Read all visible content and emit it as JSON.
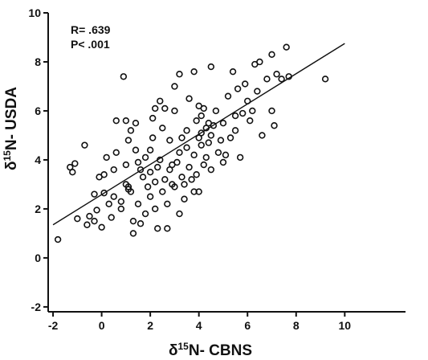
{
  "chart_data": {
    "type": "scatter",
    "title": "",
    "annotations": [
      "R= .639",
      "P< .001"
    ],
    "xlabel": {
      "prefix": "δ",
      "sup": "15",
      "main": "N- CBNS"
    },
    "ylabel": {
      "prefix": "δ",
      "sup": "15",
      "main": "N- USDA"
    },
    "xlim": [
      -2.2,
      12.5
    ],
    "ylim": [
      -2.2,
      10.0
    ],
    "x_ticks": [
      -2,
      0,
      2,
      4,
      6,
      8,
      10
    ],
    "y_ticks": [
      -2,
      0,
      2,
      4,
      6,
      8,
      10
    ],
    "grid": false,
    "regression": {
      "x1": -2,
      "y1": 1.35,
      "x2": 10,
      "y2": 8.75
    },
    "points": [
      {
        "x": -1.8,
        "y": 0.75
      },
      {
        "x": -1.3,
        "y": 3.7
      },
      {
        "x": -1.2,
        "y": 3.5
      },
      {
        "x": -1.1,
        "y": 3.85
      },
      {
        "x": -1.0,
        "y": 1.6
      },
      {
        "x": -0.7,
        "y": 4.6
      },
      {
        "x": -0.6,
        "y": 1.35
      },
      {
        "x": -0.5,
        "y": 1.7
      },
      {
        "x": -0.3,
        "y": 2.6
      },
      {
        "x": -0.2,
        "y": 1.95
      },
      {
        "x": -0.3,
        "y": 1.5
      },
      {
        "x": -0.1,
        "y": 3.3
      },
      {
        "x": 0.0,
        "y": 1.25
      },
      {
        "x": 0.1,
        "y": 2.65
      },
      {
        "x": 0.1,
        "y": 3.4
      },
      {
        "x": 0.3,
        "y": 2.2
      },
      {
        "x": 0.4,
        "y": 1.65
      },
      {
        "x": 0.5,
        "y": 3.6
      },
      {
        "x": 0.5,
        "y": 2.5
      },
      {
        "x": 0.6,
        "y": 4.3
      },
      {
        "x": 0.6,
        "y": 5.6
      },
      {
        "x": 0.8,
        "y": 2.0
      },
      {
        "x": 0.8,
        "y": 2.3
      },
      {
        "x": 0.9,
        "y": 7.4
      },
      {
        "x": 1.0,
        "y": 5.6
      },
      {
        "x": 1.0,
        "y": 3.0
      },
      {
        "x": 1.0,
        "y": 3.8
      },
      {
        "x": 1.1,
        "y": 2.8
      },
      {
        "x": 1.1,
        "y": 4.8
      },
      {
        "x": 1.2,
        "y": 5.2
      },
      {
        "x": 1.2,
        "y": 2.7
      },
      {
        "x": 1.3,
        "y": 1.5
      },
      {
        "x": 1.3,
        "y": 1.0
      },
      {
        "x": 1.4,
        "y": 4.4
      },
      {
        "x": 1.4,
        "y": 5.5
      },
      {
        "x": 1.5,
        "y": 3.9
      },
      {
        "x": 1.5,
        "y": 2.2
      },
      {
        "x": 1.6,
        "y": 1.4
      },
      {
        "x": 1.6,
        "y": 3.6
      },
      {
        "x": 1.7,
        "y": 3.3
      },
      {
        "x": 1.8,
        "y": 4.1
      },
      {
        "x": 1.8,
        "y": 1.8
      },
      {
        "x": 1.9,
        "y": 2.9
      },
      {
        "x": 2.0,
        "y": 4.4
      },
      {
        "x": 2.0,
        "y": 3.5
      },
      {
        "x": 2.0,
        "y": 2.5
      },
      {
        "x": 2.1,
        "y": 5.7
      },
      {
        "x": 2.1,
        "y": 4.9
      },
      {
        "x": 2.2,
        "y": 3.1
      },
      {
        "x": 2.2,
        "y": 2.0
      },
      {
        "x": 2.3,
        "y": 1.2
      },
      {
        "x": 2.3,
        "y": 3.7
      },
      {
        "x": 2.4,
        "y": 6.4
      },
      {
        "x": 2.4,
        "y": 4.0
      },
      {
        "x": 2.5,
        "y": 2.7
      },
      {
        "x": 2.5,
        "y": 5.3
      },
      {
        "x": 2.6,
        "y": 6.1
      },
      {
        "x": 2.6,
        "y": 3.2
      },
      {
        "x": 2.7,
        "y": 1.2
      },
      {
        "x": 2.7,
        "y": 2.2
      },
      {
        "x": 2.8,
        "y": 4.8
      },
      {
        "x": 2.8,
        "y": 3.6
      },
      {
        "x": 2.9,
        "y": 3.0
      },
      {
        "x": 3.0,
        "y": 6.0
      },
      {
        "x": 3.0,
        "y": 2.9
      },
      {
        "x": 3.0,
        "y": 7.0
      },
      {
        "x": 3.1,
        "y": 3.9
      },
      {
        "x": 3.2,
        "y": 4.3
      },
      {
        "x": 3.2,
        "y": 1.8
      },
      {
        "x": 3.3,
        "y": 3.3
      },
      {
        "x": 3.4,
        "y": 3.0
      },
      {
        "x": 3.4,
        "y": 2.4
      },
      {
        "x": 3.5,
        "y": 5.2
      },
      {
        "x": 3.5,
        "y": 4.5
      },
      {
        "x": 3.6,
        "y": 3.7
      },
      {
        "x": 3.6,
        "y": 6.5
      },
      {
        "x": 3.7,
        "y": 3.2
      },
      {
        "x": 3.8,
        "y": 2.7
      },
      {
        "x": 3.8,
        "y": 4.2
      },
      {
        "x": 3.9,
        "y": 5.6
      },
      {
        "x": 3.9,
        "y": 3.4
      },
      {
        "x": 4.0,
        "y": 6.2
      },
      {
        "x": 4.0,
        "y": 4.9
      },
      {
        "x": 4.0,
        "y": 2.7
      },
      {
        "x": 4.1,
        "y": 4.6
      },
      {
        "x": 4.1,
        "y": 5.8
      },
      {
        "x": 4.2,
        "y": 3.8
      },
      {
        "x": 4.2,
        "y": 6.1
      },
      {
        "x": 4.3,
        "y": 5.3
      },
      {
        "x": 4.3,
        "y": 4.1
      },
      {
        "x": 4.4,
        "y": 5.5
      },
      {
        "x": 4.4,
        "y": 4.7
      },
      {
        "x": 4.5,
        "y": 5.0
      },
      {
        "x": 4.5,
        "y": 3.6
      },
      {
        "x": 4.6,
        "y": 5.4
      },
      {
        "x": 4.7,
        "y": 6.0
      },
      {
        "x": 4.8,
        "y": 4.3
      },
      {
        "x": 4.9,
        "y": 4.8
      },
      {
        "x": 5.0,
        "y": 5.5
      },
      {
        "x": 5.0,
        "y": 3.9
      },
      {
        "x": 5.1,
        "y": 4.2
      },
      {
        "x": 5.2,
        "y": 6.6
      },
      {
        "x": 5.3,
        "y": 4.9
      },
      {
        "x": 5.4,
        "y": 7.6
      },
      {
        "x": 5.5,
        "y": 5.2
      },
      {
        "x": 5.6,
        "y": 6.9
      },
      {
        "x": 5.7,
        "y": 4.1
      },
      {
        "x": 5.8,
        "y": 5.9
      },
      {
        "x": 5.9,
        "y": 7.1
      },
      {
        "x": 6.0,
        "y": 6.4
      },
      {
        "x": 6.1,
        "y": 5.6
      },
      {
        "x": 6.3,
        "y": 7.9
      },
      {
        "x": 6.4,
        "y": 6.8
      },
      {
        "x": 6.5,
        "y": 8.0
      },
      {
        "x": 6.6,
        "y": 5.0
      },
      {
        "x": 6.8,
        "y": 7.3
      },
      {
        "x": 7.0,
        "y": 8.3
      },
      {
        "x": 7.0,
        "y": 6.0
      },
      {
        "x": 7.1,
        "y": 5.4
      },
      {
        "x": 7.2,
        "y": 7.5
      },
      {
        "x": 7.4,
        "y": 7.3
      },
      {
        "x": 7.6,
        "y": 8.6
      },
      {
        "x": 7.7,
        "y": 7.4
      },
      {
        "x": 9.2,
        "y": 7.3
      },
      {
        "x": 3.2,
        "y": 7.5
      },
      {
        "x": 4.5,
        "y": 7.8
      },
      {
        "x": 3.8,
        "y": 7.6
      },
      {
        "x": 1.1,
        "y": 2.9
      },
      {
        "x": 2.9,
        "y": 3.8
      },
      {
        "x": 3.3,
        "y": 4.9
      },
      {
        "x": 4.1,
        "y": 5.1
      },
      {
        "x": 5.5,
        "y": 5.8
      },
      {
        "x": 2.2,
        "y": 6.1
      },
      {
        "x": 0.2,
        "y": 4.1
      },
      {
        "x": 6.2,
        "y": 6.0
      }
    ]
  }
}
